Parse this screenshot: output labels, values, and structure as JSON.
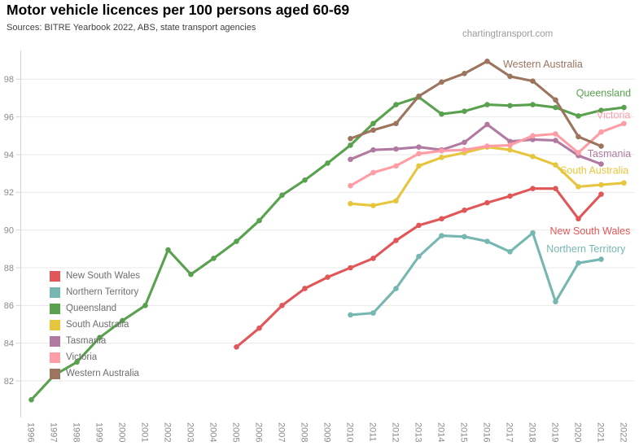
{
  "title": "Motor vehicle licences per 100 persons aged 60-69",
  "subtitle": "Sources: BITRE Yearbook 2022, ABS, state transport agencies",
  "watermark": "chartingtransport.com",
  "chart_data": {
    "type": "line",
    "title": "Motor vehicle licences per 100 persons aged 60-69",
    "xlabel": "",
    "ylabel": "",
    "grid": true,
    "legend_position": "inside-upper-left",
    "ylim": [
      80,
      99.5
    ],
    "y_ticks": [
      82,
      84,
      86,
      88,
      90,
      92,
      94,
      96,
      98
    ],
    "x_ticks": [
      1996,
      1997,
      1998,
      1999,
      2000,
      2001,
      2002,
      2003,
      2004,
      2005,
      2006,
      2007,
      2008,
      2009,
      2010,
      2011,
      2012,
      2013,
      2014,
      2015,
      2016,
      2017,
      2018,
      2019,
      2020,
      2021,
      2022
    ],
    "series": [
      {
        "id": "nsw",
        "name": "New South Wales",
        "color": "#E15759",
        "years": [
          2005,
          2006,
          2007,
          2008,
          2009,
          2010,
          2011,
          2012,
          2013,
          2014,
          2015,
          2016,
          2017,
          2018,
          2019,
          2020,
          2021
        ],
        "values": [
          83.8,
          84.8,
          86.0,
          86.9,
          87.5,
          88.0,
          88.5,
          89.45,
          90.25,
          90.6,
          91.05,
          91.45,
          91.8,
          92.2,
          92.2,
          90.6,
          91.9
        ],
        "label_anchor": {
          "year": 2018.75,
          "value": 89.95
        }
      },
      {
        "id": "nt",
        "name": "Northern Territory",
        "color": "#76B7B2",
        "years": [
          2010,
          2011,
          2012,
          2013,
          2014,
          2015,
          2016,
          2017,
          2018,
          2019,
          2020,
          2021
        ],
        "values": [
          85.5,
          85.6,
          86.9,
          88.6,
          89.7,
          89.65,
          89.4,
          88.85,
          89.85,
          86.2,
          88.25,
          88.45
        ],
        "label_anchor": {
          "year": 2018.6,
          "value": 89.0
        }
      },
      {
        "id": "qld",
        "name": "Queensland",
        "color": "#59A14F",
        "years": [
          1996,
          1997,
          1998,
          1999,
          2000,
          2001,
          2002,
          2003,
          2004,
          2005,
          2006,
          2007,
          2008,
          2009,
          2010,
          2011,
          2012,
          2013,
          2014,
          2015,
          2016,
          2017,
          2018,
          2019,
          2020,
          2021,
          2022
        ],
        "values": [
          81.0,
          82.3,
          83.0,
          84.3,
          85.2,
          86.0,
          88.95,
          87.65,
          88.5,
          89.4,
          90.5,
          91.85,
          92.65,
          93.55,
          94.5,
          95.65,
          96.65,
          97.05,
          96.15,
          96.3,
          96.65,
          96.6,
          96.65,
          96.5,
          96.05,
          96.35,
          96.5
        ],
        "label_anchor": {
          "year": 2019.9,
          "value": 97.25
        }
      },
      {
        "id": "sa",
        "name": "South Australia",
        "color": "#E7C63F",
        "years": [
          2010,
          2011,
          2012,
          2013,
          2014,
          2015,
          2016,
          2017,
          2018,
          2019,
          2020,
          2021,
          2022
        ],
        "values": [
          91.4,
          91.3,
          91.55,
          93.4,
          93.85,
          94.1,
          94.4,
          94.25,
          93.9,
          93.45,
          92.3,
          92.4,
          92.5
        ],
        "label_anchor": {
          "year": 2019.2,
          "value": 93.15
        }
      },
      {
        "id": "tas",
        "name": "Tasmania",
        "color": "#B07AA1",
        "years": [
          2010,
          2011,
          2012,
          2013,
          2014,
          2015,
          2016,
          2017,
          2018,
          2019,
          2020,
          2021
        ],
        "values": [
          93.75,
          94.25,
          94.3,
          94.4,
          94.25,
          94.65,
          95.6,
          94.7,
          94.8,
          94.75,
          93.95,
          93.5
        ],
        "label_anchor": {
          "year": 2020.4,
          "value": 94.05
        }
      },
      {
        "id": "vic",
        "name": "Victoria",
        "color": "#FF9DA7",
        "years": [
          2010,
          2011,
          2012,
          2013,
          2014,
          2015,
          2016,
          2017,
          2018,
          2019,
          2020,
          2021,
          2022
        ],
        "values": [
          92.35,
          93.05,
          93.4,
          94.05,
          94.2,
          94.25,
          94.45,
          94.5,
          95.0,
          95.1,
          94.1,
          95.2,
          95.65
        ],
        "label_anchor": {
          "year": 2020.8,
          "value": 96.1
        }
      },
      {
        "id": "wa",
        "name": "Western Australia",
        "color": "#9C755F",
        "years": [
          2010,
          2011,
          2012,
          2013,
          2014,
          2015,
          2016,
          2017,
          2018,
          2019,
          2020,
          2021
        ],
        "values": [
          94.85,
          95.3,
          95.65,
          97.1,
          97.85,
          98.3,
          98.95,
          98.15,
          97.9,
          96.9,
          94.95,
          94.45
        ],
        "label_anchor": {
          "year": 2016.7,
          "value": 98.8
        }
      }
    ]
  }
}
